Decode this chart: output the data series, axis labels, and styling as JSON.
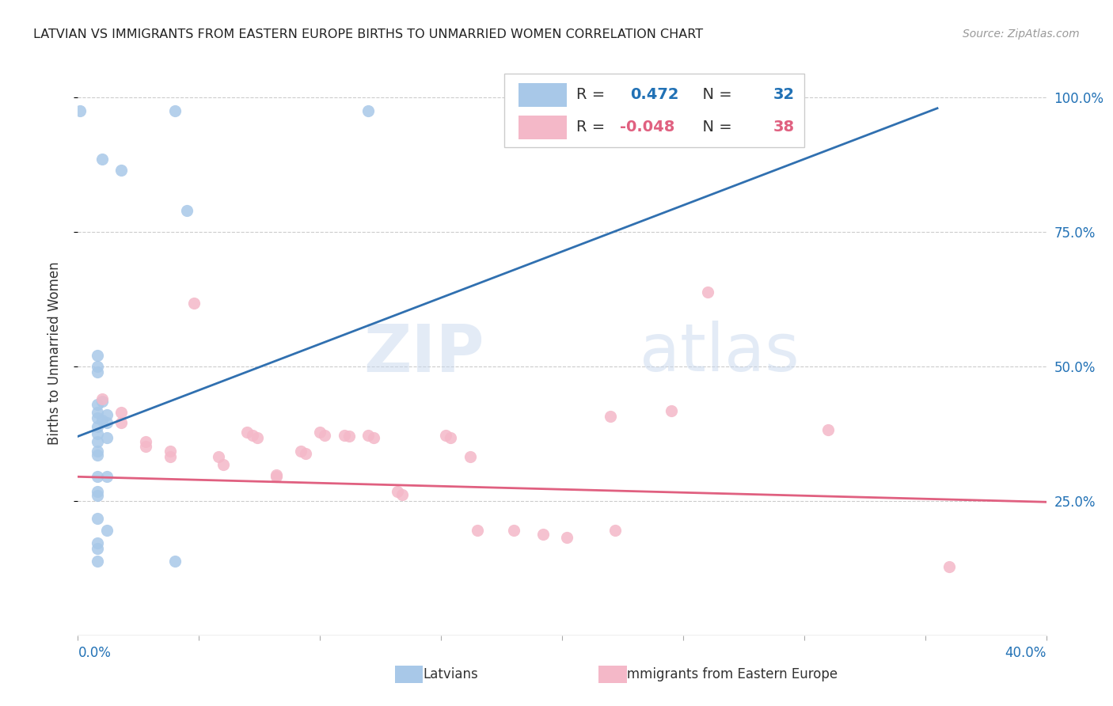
{
  "title": "LATVIAN VS IMMIGRANTS FROM EASTERN EUROPE BIRTHS TO UNMARRIED WOMEN CORRELATION CHART",
  "source": "Source: ZipAtlas.com",
  "ylabel": "Births to Unmarried Women",
  "right_yticklabels": [
    "25.0%",
    "50.0%",
    "75.0%",
    "100.0%"
  ],
  "right_ytick_vals": [
    0.25,
    0.5,
    0.75,
    1.0
  ],
  "legend_blue_r": "0.472",
  "legend_blue_n": "32",
  "legend_pink_r": "-0.048",
  "legend_pink_n": "38",
  "legend_label_blue": "Latvians",
  "legend_label_pink": "Immigrants from Eastern Europe",
  "blue_color": "#a8c8e8",
  "pink_color": "#f4b8c8",
  "trendline_blue": "#3070b0",
  "trendline_pink": "#e06080",
  "watermark_zip": "ZIP",
  "watermark_atlas": "atlas",
  "xlim": [
    0.0,
    0.4
  ],
  "ylim": [
    0.0,
    1.05
  ],
  "blue_points": [
    [
      0.001,
      0.975
    ],
    [
      0.04,
      0.975
    ],
    [
      0.12,
      0.975
    ],
    [
      0.01,
      0.885
    ],
    [
      0.018,
      0.865
    ],
    [
      0.045,
      0.79
    ],
    [
      0.008,
      0.52
    ],
    [
      0.008,
      0.5
    ],
    [
      0.008,
      0.49
    ],
    [
      0.008,
      0.43
    ],
    [
      0.01,
      0.435
    ],
    [
      0.008,
      0.415
    ],
    [
      0.012,
      0.41
    ],
    [
      0.008,
      0.405
    ],
    [
      0.01,
      0.4
    ],
    [
      0.012,
      0.395
    ],
    [
      0.008,
      0.388
    ],
    [
      0.008,
      0.375
    ],
    [
      0.012,
      0.368
    ],
    [
      0.008,
      0.36
    ],
    [
      0.008,
      0.342
    ],
    [
      0.008,
      0.335
    ],
    [
      0.008,
      0.295
    ],
    [
      0.012,
      0.295
    ],
    [
      0.008,
      0.268
    ],
    [
      0.008,
      0.26
    ],
    [
      0.008,
      0.218
    ],
    [
      0.012,
      0.195
    ],
    [
      0.008,
      0.172
    ],
    [
      0.008,
      0.162
    ],
    [
      0.008,
      0.138
    ],
    [
      0.04,
      0.138
    ]
  ],
  "pink_points": [
    [
      0.01,
      0.44
    ],
    [
      0.018,
      0.415
    ],
    [
      0.018,
      0.395
    ],
    [
      0.028,
      0.36
    ],
    [
      0.028,
      0.352
    ],
    [
      0.038,
      0.342
    ],
    [
      0.038,
      0.332
    ],
    [
      0.048,
      0.618
    ],
    [
      0.058,
      0.332
    ],
    [
      0.06,
      0.318
    ],
    [
      0.07,
      0.378
    ],
    [
      0.072,
      0.372
    ],
    [
      0.074,
      0.368
    ],
    [
      0.082,
      0.298
    ],
    [
      0.082,
      0.295
    ],
    [
      0.092,
      0.342
    ],
    [
      0.094,
      0.338
    ],
    [
      0.1,
      0.378
    ],
    [
      0.102,
      0.372
    ],
    [
      0.11,
      0.372
    ],
    [
      0.112,
      0.37
    ],
    [
      0.12,
      0.372
    ],
    [
      0.122,
      0.368
    ],
    [
      0.132,
      0.268
    ],
    [
      0.134,
      0.262
    ],
    [
      0.152,
      0.372
    ],
    [
      0.154,
      0.368
    ],
    [
      0.162,
      0.332
    ],
    [
      0.165,
      0.195
    ],
    [
      0.18,
      0.195
    ],
    [
      0.192,
      0.188
    ],
    [
      0.202,
      0.182
    ],
    [
      0.22,
      0.408
    ],
    [
      0.222,
      0.195
    ],
    [
      0.245,
      0.418
    ],
    [
      0.26,
      0.638
    ],
    [
      0.31,
      0.382
    ],
    [
      0.36,
      0.128
    ]
  ],
  "blue_trend_x": [
    0.0,
    0.355
  ],
  "blue_trend_y": [
    0.37,
    0.98
  ],
  "pink_trend_x": [
    0.0,
    0.4
  ],
  "pink_trend_y": [
    0.295,
    0.248
  ]
}
